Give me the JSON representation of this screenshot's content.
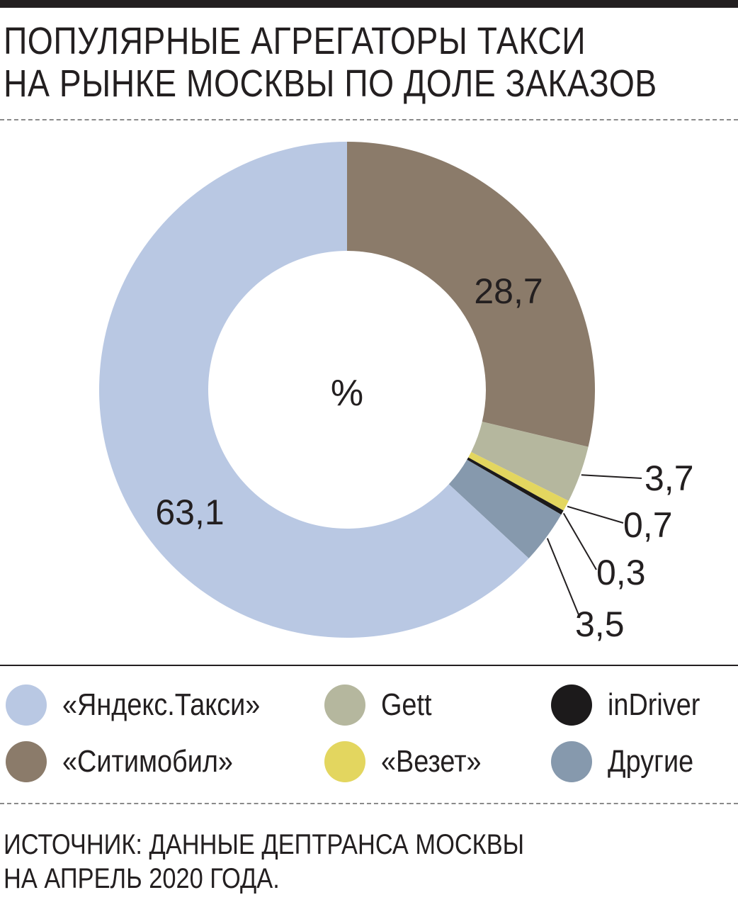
{
  "title": {
    "line1": "ПОПУЛЯРНЫЕ АГРЕГАТОРЫ ТАКСИ",
    "line2": "НА РЫНКЕ МОСКВЫ ПО ДОЛЕ ЗАКАЗОВ"
  },
  "chart_data": {
    "type": "pie",
    "subtype": "donut",
    "center_label": "%",
    "slices": [
      {
        "name": "«Ситимобил»",
        "value": 28.7,
        "label": "28,7",
        "color": "#8b7b6a"
      },
      {
        "name": "Gett",
        "value": 3.7,
        "label": "3,7",
        "color": "#b5b79e"
      },
      {
        "name": "«Везет»",
        "value": 0.7,
        "label": "0,7",
        "color": "#e3d65f"
      },
      {
        "name": "inDriver",
        "value": 0.3,
        "label": "0,3",
        "color": "#1c1a1b"
      },
      {
        "name": "Другие",
        "value": 3.5,
        "label": "3,5",
        "color": "#8699ad"
      },
      {
        "name": "«Яндекс.Такси»",
        "value": 63.1,
        "label": "63,1",
        "color": "#b9c8e3"
      }
    ]
  },
  "legend": [
    {
      "label": "«Яндекс.Такси»",
      "color": "#b9c8e3"
    },
    {
      "label": "Gett",
      "color": "#b5b79e"
    },
    {
      "label": "inDriver",
      "color": "#1c1a1b"
    },
    {
      "label": "«Ситимобил»",
      "color": "#8b7b6a"
    },
    {
      "label": "«Везет»",
      "color": "#e3d65f"
    },
    {
      "label": "Другие",
      "color": "#8699ad"
    }
  ],
  "source": {
    "line1": "ИСТОЧНИК: ДАННЫЕ ДЕПТРАНСА МОСКВЫ",
    "line2": "НА АПРЕЛЬ 2020 ГОДА."
  }
}
